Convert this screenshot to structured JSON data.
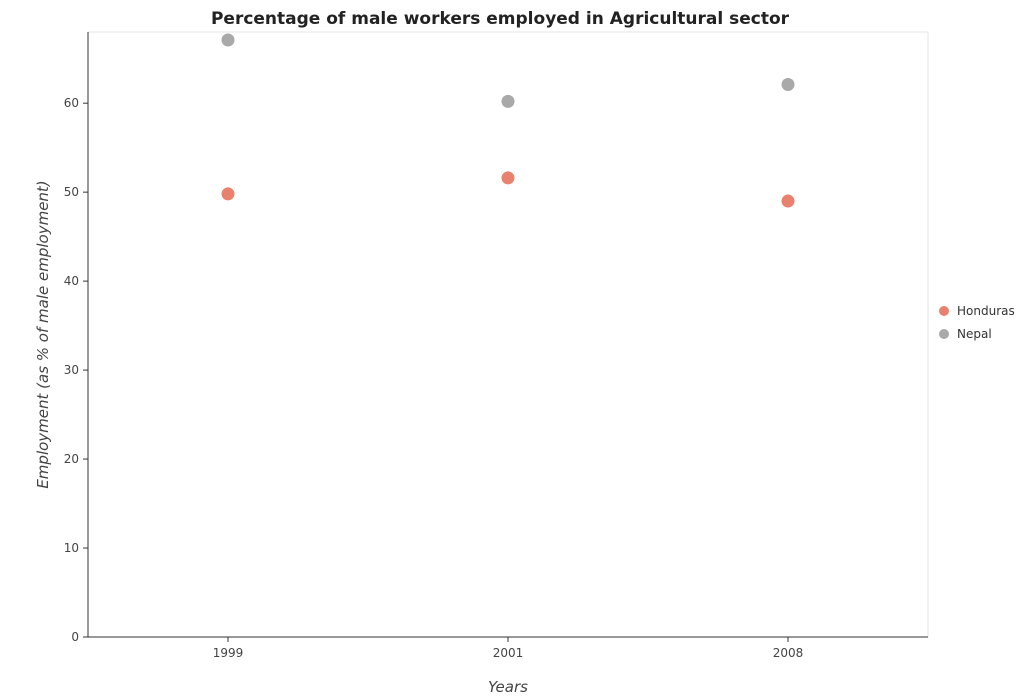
{
  "chart_data": {
    "type": "scatter",
    "title": "Percentage of male workers employed in Agricultural sector",
    "xlabel": "Years",
    "ylabel": "Employment (as % of male employment)",
    "categories": [
      "1999",
      "2001",
      "2008"
    ],
    "ylim": [
      0,
      68
    ],
    "yticks": [
      0,
      10,
      20,
      30,
      40,
      50,
      60
    ],
    "grid": false,
    "legend_position": "right",
    "series": [
      {
        "name": "Honduras",
        "color": "#e8826e",
        "values": [
          49.8,
          51.6,
          49.0
        ]
      },
      {
        "name": "Nepal",
        "color": "#a9a9a9",
        "values": [
          67.1,
          60.2,
          62.1
        ]
      }
    ]
  }
}
